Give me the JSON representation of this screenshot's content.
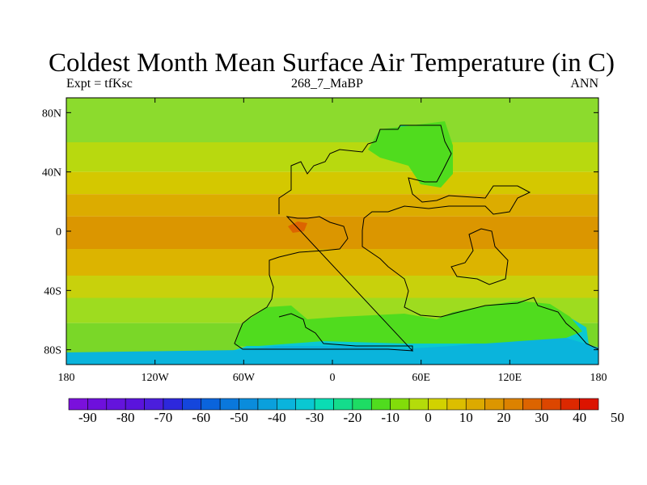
{
  "header": {
    "title": "Coldest Month Mean Surface Air Temperature (in C)",
    "left_label": "Expt = tfKsc",
    "center_label": "268_7_MaBP",
    "right_label": "ANN"
  },
  "map": {
    "lat_ticks": [
      "80N",
      "40N",
      "0",
      "40S",
      "80S"
    ],
    "lon_ticks": [
      "180",
      "120W",
      "60W",
      "0",
      "60E",
      "120E",
      "180"
    ],
    "lat_range": [
      -90,
      90
    ],
    "lon_range": [
      -180,
      180
    ],
    "bands": [
      {
        "lat_top": 90,
        "lat_bottom": 60,
        "color": "#8cdb2d"
      },
      {
        "lat_top": 60,
        "lat_bottom": 40,
        "color": "#b8d90f"
      },
      {
        "lat_top": 40,
        "lat_bottom": 25,
        "color": "#d4c800"
      },
      {
        "lat_top": 25,
        "lat_bottom": 10,
        "color": "#dcac00"
      },
      {
        "lat_top": 10,
        "lat_bottom": -12,
        "color": "#db9600"
      },
      {
        "lat_top": -12,
        "lat_bottom": -30,
        "color": "#dcb400"
      },
      {
        "lat_top": -30,
        "lat_bottom": -45,
        "color": "#c8d10c"
      },
      {
        "lat_top": -45,
        "lat_bottom": -62,
        "color": "#9edc1f"
      },
      {
        "lat_top": -62,
        "lat_bottom": -90,
        "color": "#7ad728"
      }
    ]
  },
  "colorbar": {
    "colors": [
      "#7a10dc",
      "#6e10dc",
      "#6414dc",
      "#5a14dc",
      "#4b1edc",
      "#2d28dc",
      "#1446dc",
      "#0a64dc",
      "#0a78dc",
      "#0a8cdc",
      "#0aa0dc",
      "#0ab4dc",
      "#0ac8d2",
      "#0adcb4",
      "#14dc8c",
      "#1edc64",
      "#50dc1e",
      "#82dc0a",
      "#b4dc0a",
      "#d2d200",
      "#dcbe00",
      "#dcaa00",
      "#dc9600",
      "#dc8200",
      "#dc6400",
      "#dc4600",
      "#dc2800",
      "#dc1400"
    ],
    "labels": [
      "-90",
      "-80",
      "-70",
      "-60",
      "-50",
      "-40",
      "-30",
      "-20",
      "-10",
      "0",
      "10",
      "20",
      "30",
      "40",
      "50"
    ]
  }
}
